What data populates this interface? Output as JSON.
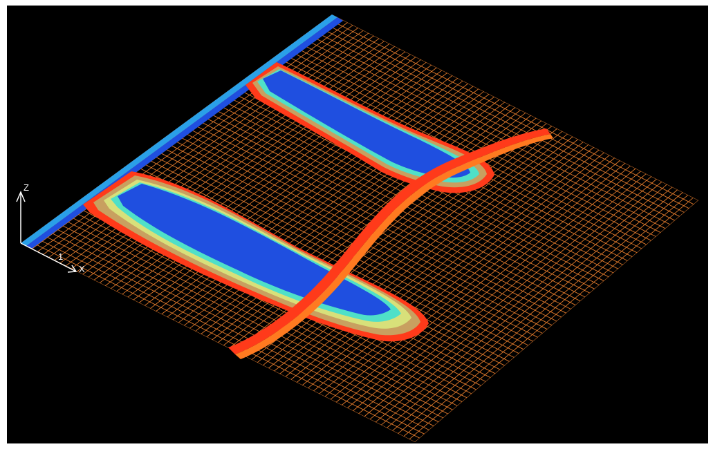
{
  "axes": {
    "z_label": "Z",
    "x_label": "X",
    "origin_label": "1"
  },
  "colors": {
    "background": "#000000",
    "mesh": "#e07a2c",
    "flow_core": "#1f4fe0",
    "flow_mid": "#2aa0e8",
    "flow_cyan": "#4fe0c8",
    "flow_yellow": "#d8e07a",
    "flow_tan": "#c8a060",
    "flow_red": "#ff3a1a",
    "flow_orange": "#ff7a20"
  }
}
